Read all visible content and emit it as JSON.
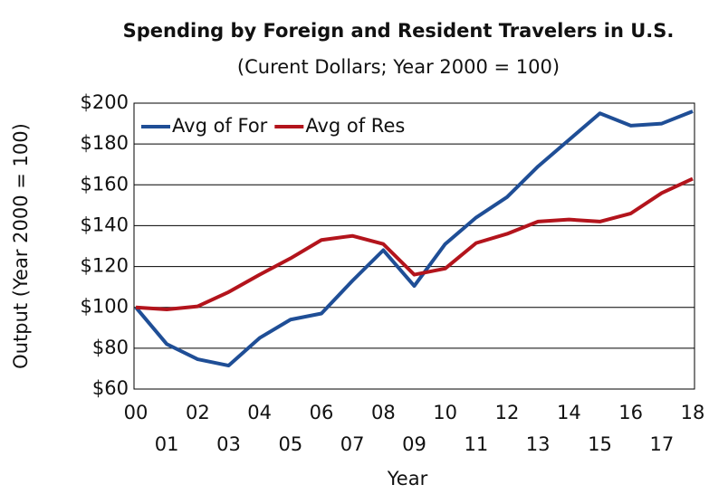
{
  "chart_data": {
    "type": "line",
    "title": "Spending by Foreign and Resident Travelers in U.S.",
    "subtitle": "(Curent Dollars; Year 2000 = 100)",
    "x_label": "Year",
    "y_label": "Output (Year 2000 = 100)",
    "categories": [
      "00",
      "01",
      "02",
      "03",
      "04",
      "05",
      "06",
      "07",
      "08",
      "09",
      "10",
      "11",
      "12",
      "13",
      "14",
      "15",
      "16",
      "17",
      "18"
    ],
    "series": [
      {
        "name": "Avg of For",
        "color": "#1f4e96",
        "values": [
          100,
          82,
          74.6,
          71.5,
          85,
          94,
          97,
          113,
          128,
          110.5,
          131,
          144,
          154,
          169,
          182,
          195,
          189,
          190,
          196
        ]
      },
      {
        "name": "Avg of Res",
        "color": "#b3141c",
        "values": [
          100,
          99,
          100.5,
          107.5,
          116,
          124,
          133,
          135,
          131,
          116,
          119,
          131.5,
          136,
          142,
          143,
          142,
          146,
          156,
          163
        ]
      }
    ],
    "ylim": [
      60,
      200
    ],
    "yticks": [
      {
        "value": 60,
        "label": "$60"
      },
      {
        "value": 80,
        "label": "$80"
      },
      {
        "value": 100,
        "label": "$100"
      },
      {
        "value": 120,
        "label": "$120"
      },
      {
        "value": 140,
        "label": "$140"
      },
      {
        "value": 160,
        "label": "$160"
      },
      {
        "value": 180,
        "label": "$180"
      },
      {
        "value": 200,
        "label": "$200"
      }
    ],
    "grid": true,
    "legend": "top-left"
  }
}
